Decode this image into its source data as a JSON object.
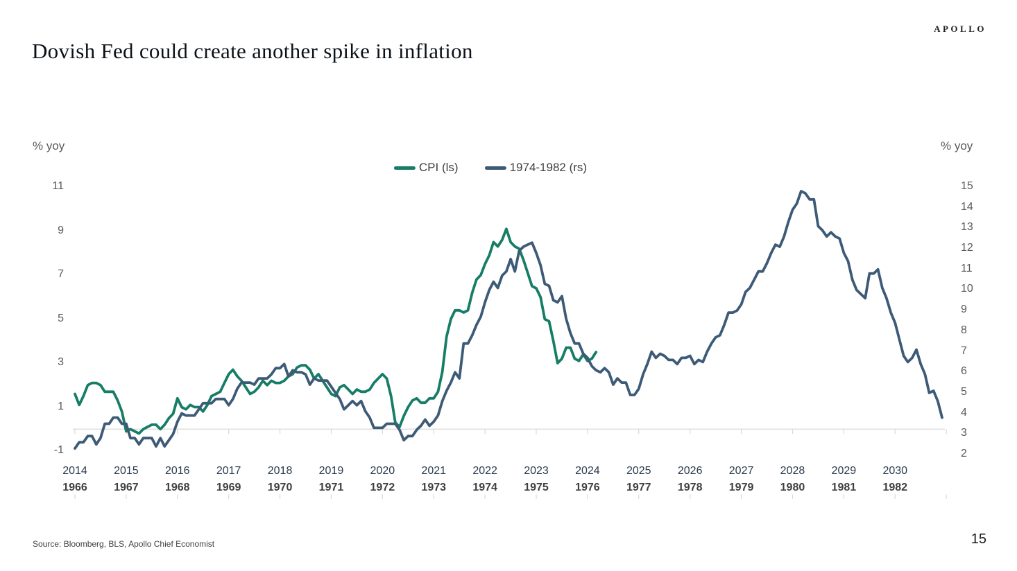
{
  "header": {
    "logo": "APOLLO",
    "title": "Dovish Fed could create another spike in inflation"
  },
  "footer": {
    "source": "Source: Bloomberg, BLS, Apollo Chief Economist",
    "page_number": "15"
  },
  "chart_data": {
    "type": "line",
    "grid": false,
    "legend_position": "top-center",
    "axis_color": "#d9d9d9",
    "left_axis": {
      "label": "% yoy",
      "ticks": [
        11,
        9,
        7,
        5,
        3,
        1,
        -1
      ],
      "range": [
        -1,
        11
      ]
    },
    "right_axis": {
      "label": "% yoy",
      "ticks": [
        15,
        14,
        13,
        12,
        11,
        10,
        9,
        8,
        7,
        6,
        5,
        4,
        3,
        2
      ],
      "range": [
        2,
        15
      ]
    },
    "x_axis": {
      "primary_years": [
        "2014",
        "2015",
        "2016",
        "2017",
        "2018",
        "2019",
        "2020",
        "2021",
        "2022",
        "2023",
        "2024",
        "2025",
        "2026",
        "2027",
        "2028",
        "2029",
        "2030"
      ],
      "secondary_years": [
        "1966",
        "1967",
        "1968",
        "1969",
        "1970",
        "1971",
        "1972",
        "1973",
        "1974",
        "1975",
        "1976",
        "1977",
        "1978",
        "1979",
        "1980",
        "1981",
        "1982"
      ]
    },
    "legend": [
      {
        "name": "CPI (ls)",
        "color": "#177d66"
      },
      {
        "name": "1974-1982 (rs)",
        "color": "#3d5a77"
      }
    ],
    "series": [
      {
        "name": "CPI (ls)",
        "axis": "left",
        "color": "#177d66",
        "start": "2014-01",
        "frequency": "monthly",
        "monthly_values": [
          1.6,
          1.1,
          1.5,
          2.0,
          2.1,
          2.1,
          2.0,
          1.7,
          1.7,
          1.7,
          1.3,
          0.8,
          -0.1,
          0.0,
          -0.1,
          -0.2,
          0.0,
          0.1,
          0.2,
          0.2,
          0.0,
          0.2,
          0.5,
          0.7,
          1.4,
          1.0,
          0.9,
          1.1,
          1.0,
          1.0,
          0.8,
          1.1,
          1.5,
          1.6,
          1.7,
          2.1,
          2.5,
          2.7,
          2.4,
          2.2,
          1.9,
          1.6,
          1.7,
          1.9,
          2.2,
          2.0,
          2.2,
          2.1,
          2.1,
          2.2,
          2.4,
          2.5,
          2.8,
          2.9,
          2.9,
          2.7,
          2.3,
          2.5,
          2.2,
          1.9,
          1.6,
          1.5,
          1.9,
          2.0,
          1.8,
          1.6,
          1.8,
          1.7,
          1.7,
          1.8,
          2.1,
          2.3,
          2.5,
          2.3,
          1.5,
          0.3,
          0.1,
          0.6,
          1.0,
          1.3,
          1.4,
          1.2,
          1.2,
          1.4,
          1.4,
          1.7,
          2.6,
          4.2,
          5.0,
          5.4,
          5.4,
          5.3,
          5.4,
          6.2,
          6.8,
          7.0,
          7.5,
          7.9,
          8.5,
          8.3,
          8.6,
          9.1,
          8.5,
          8.3,
          8.2,
          7.7,
          7.1,
          6.5,
          6.4,
          6.0,
          5.0,
          4.9,
          4.0,
          3.0,
          3.2,
          3.7,
          3.7,
          3.2,
          3.1,
          3.4,
          3.1,
          3.2,
          3.5
        ]
      },
      {
        "name": "1974-1982 (rs)",
        "axis": "right",
        "color": "#3d5a77",
        "start": "1966-01",
        "frequency": "monthly",
        "monthly_values": [
          2.3,
          2.6,
          2.6,
          2.9,
          2.9,
          2.5,
          2.8,
          3.5,
          3.5,
          3.8,
          3.8,
          3.5,
          3.5,
          2.8,
          2.8,
          2.5,
          2.8,
          2.8,
          2.8,
          2.4,
          2.8,
          2.4,
          2.7,
          3.0,
          3.6,
          4.0,
          3.9,
          3.9,
          3.9,
          4.2,
          4.5,
          4.5,
          4.5,
          4.7,
          4.7,
          4.7,
          4.4,
          4.7,
          5.2,
          5.5,
          5.5,
          5.5,
          5.4,
          5.7,
          5.7,
          5.7,
          5.9,
          6.2,
          6.2,
          6.4,
          5.8,
          6.1,
          6.0,
          6.0,
          5.9,
          5.4,
          5.7,
          5.6,
          5.6,
          5.6,
          5.3,
          5.0,
          4.7,
          4.2,
          4.4,
          4.6,
          4.4,
          4.6,
          4.1,
          3.8,
          3.3,
          3.3,
          3.3,
          3.5,
          3.5,
          3.5,
          3.2,
          2.7,
          2.9,
          2.9,
          3.2,
          3.4,
          3.7,
          3.4,
          3.6,
          3.9,
          4.6,
          5.1,
          5.5,
          6.0,
          5.7,
          7.4,
          7.4,
          7.8,
          8.3,
          8.7,
          9.4,
          10.0,
          10.4,
          10.1,
          10.7,
          10.9,
          11.5,
          10.9,
          11.9,
          12.1,
          12.2,
          12.3,
          11.8,
          11.2,
          10.3,
          10.2,
          9.5,
          9.4,
          9.7,
          8.6,
          7.9,
          7.4,
          7.4,
          6.9,
          6.7,
          6.3,
          6.1,
          6.0,
          6.2,
          6.0,
          5.4,
          5.7,
          5.5,
          5.5,
          4.9,
          4.9,
          5.2,
          5.9,
          6.4,
          7.0,
          6.7,
          6.9,
          6.8,
          6.6,
          6.6,
          6.4,
          6.7,
          6.7,
          6.8,
          6.4,
          6.6,
          6.5,
          7.0,
          7.4,
          7.7,
          7.8,
          8.3,
          8.9,
          8.9,
          9.0,
          9.3,
          9.9,
          10.1,
          10.5,
          10.9,
          10.9,
          11.3,
          11.8,
          12.2,
          12.1,
          12.6,
          13.3,
          13.9,
          14.2,
          14.8,
          14.7,
          14.4,
          14.4,
          13.1,
          12.9,
          12.6,
          12.8,
          12.6,
          12.5,
          11.8,
          11.4,
          10.5,
          10.0,
          9.8,
          9.6,
          10.8,
          10.8,
          11.0,
          10.1,
          9.6,
          8.9,
          8.4,
          7.6,
          6.8,
          6.5,
          6.7,
          7.1,
          6.4,
          5.9,
          5.0,
          5.1,
          4.6,
          3.8
        ]
      }
    ]
  }
}
